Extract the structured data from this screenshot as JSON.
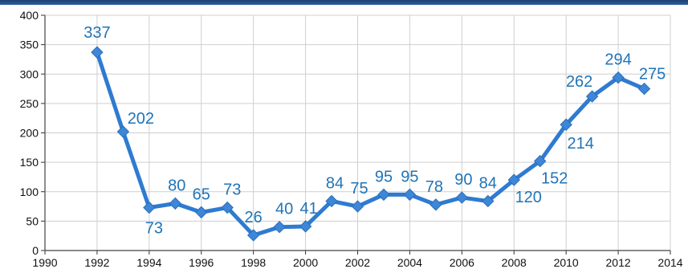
{
  "chart_data": {
    "type": "line",
    "title": "",
    "xlabel": "",
    "ylabel": "",
    "xlim": [
      1990,
      2014
    ],
    "ylim": [
      0,
      400
    ],
    "x_ticks": [
      "1990",
      "1992",
      "1994",
      "1996",
      "1998",
      "2000",
      "2002",
      "2004",
      "2006",
      "2008",
      "2010",
      "2012",
      "2014"
    ],
    "y_ticks": [
      "0",
      "50",
      "100",
      "150",
      "200",
      "250",
      "300",
      "350",
      "400"
    ],
    "grid": true,
    "legend": "none",
    "series": [
      {
        "x": [
          1992,
          1993,
          1994,
          1995,
          1996,
          1997,
          1998,
          1999,
          2000,
          2001,
          2002,
          2003,
          2004,
          2005,
          2006,
          2007,
          2008,
          2009,
          2010,
          2011,
          2012,
          2013
        ],
        "values": [
          337,
          202,
          73,
          80,
          65,
          73,
          26,
          40,
          41,
          84,
          75,
          95,
          95,
          78,
          90,
          84,
          120,
          152,
          214,
          262,
          294,
          275
        ],
        "labels": [
          "337",
          "202",
          "73",
          "80",
          "65",
          "73",
          "26",
          "40",
          "41",
          "84",
          "75",
          "95",
          "95",
          "78",
          "90",
          "84",
          "120",
          "152",
          "214",
          "262",
          "294",
          "275"
        ]
      }
    ],
    "colors": {
      "line": "#2e7bd1",
      "label": "#1f74b8",
      "grid": "#cfcfcf",
      "band": "#1f4e8c"
    }
  }
}
